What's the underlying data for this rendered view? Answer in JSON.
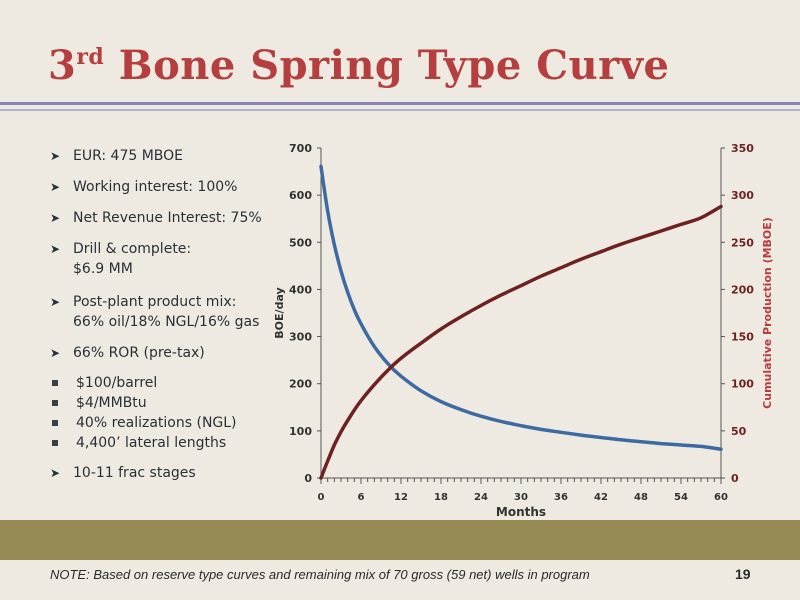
{
  "slide": {
    "title_number": "3",
    "title_suffix": "rd",
    "title_text": " Bone Spring Type Curve",
    "bullets": [
      {
        "level": 1,
        "lines": [
          "EUR: 475 MBOE"
        ]
      },
      {
        "level": 1,
        "lines": [
          "Working interest: 100%"
        ]
      },
      {
        "level": 1,
        "lines": [
          "Net Revenue Interest: 75%"
        ]
      },
      {
        "level": 1,
        "lines": [
          "Drill & complete:",
          "$6.9 MM"
        ]
      },
      {
        "level": 1,
        "lines": [
          "Post-plant product mix:",
          "66% oil/18% NGL/16% gas"
        ]
      },
      {
        "level": 1,
        "lines": [
          "66% ROR (pre-tax)"
        ]
      },
      {
        "level": 2,
        "lines": [
          "$100/barrel"
        ]
      },
      {
        "level": 2,
        "lines": [
          "$4/MMBtu"
        ]
      },
      {
        "level": 2,
        "lines": [
          "40% realizations (NGL)"
        ]
      },
      {
        "level": 2,
        "lines": [
          "4,400’ lateral lengths"
        ]
      },
      {
        "level": 1,
        "lines": [
          "10-11 frac stages"
        ]
      }
    ],
    "note": "NOTE: Based on reserve type curves and remaining mix of 70 gross (59 net) wells in program",
    "page_number": "19"
  },
  "colors": {
    "title": "#b53e3e",
    "rate_series": "#3e6aa3",
    "cumulative_series": "#6e2121",
    "band": "#968b55"
  },
  "chart_data": {
    "type": "line",
    "xlabel": "Months",
    "ylabel": "BOE/day",
    "y2label": "Cumulative Production (MBOE)",
    "xlim": [
      0,
      60
    ],
    "ylim": [
      0,
      700
    ],
    "y2lim": [
      0,
      350
    ],
    "x_major_ticks": [
      0,
      6,
      12,
      18,
      24,
      30,
      36,
      42,
      48,
      54,
      60
    ],
    "y_ticks": [
      0,
      100,
      200,
      300,
      400,
      500,
      600,
      700
    ],
    "y2_ticks": [
      0,
      50,
      100,
      150,
      200,
      250,
      300,
      350
    ],
    "grid": false,
    "series": [
      {
        "axis": "left",
        "x": [
          0,
          1,
          2,
          3,
          4,
          5,
          6,
          8,
          10,
          12,
          15,
          18,
          21,
          24,
          27,
          30,
          33,
          36,
          39,
          42,
          45,
          48,
          51,
          54,
          57,
          60
        ],
        "values": [
          661,
          566,
          495,
          439,
          394,
          357,
          327,
          279,
          243,
          216,
          185,
          162,
          145,
          131,
          120,
          111,
          103,
          97,
          91,
          86,
          81,
          77,
          73,
          70,
          67,
          61
        ]
      },
      {
        "axis": "right",
        "x": [
          0,
          1,
          2,
          3,
          4,
          5,
          6,
          8,
          10,
          12,
          15,
          18,
          21,
          24,
          27,
          30,
          33,
          36,
          39,
          42,
          45,
          48,
          51,
          54,
          57,
          60
        ],
        "values": [
          0,
          18,
          35,
          49,
          61,
          72,
          82,
          99,
          114,
          127,
          143,
          158,
          171,
          183,
          194,
          204,
          214,
          223,
          232,
          240,
          248,
          255,
          262,
          269,
          276,
          288
        ]
      }
    ]
  }
}
